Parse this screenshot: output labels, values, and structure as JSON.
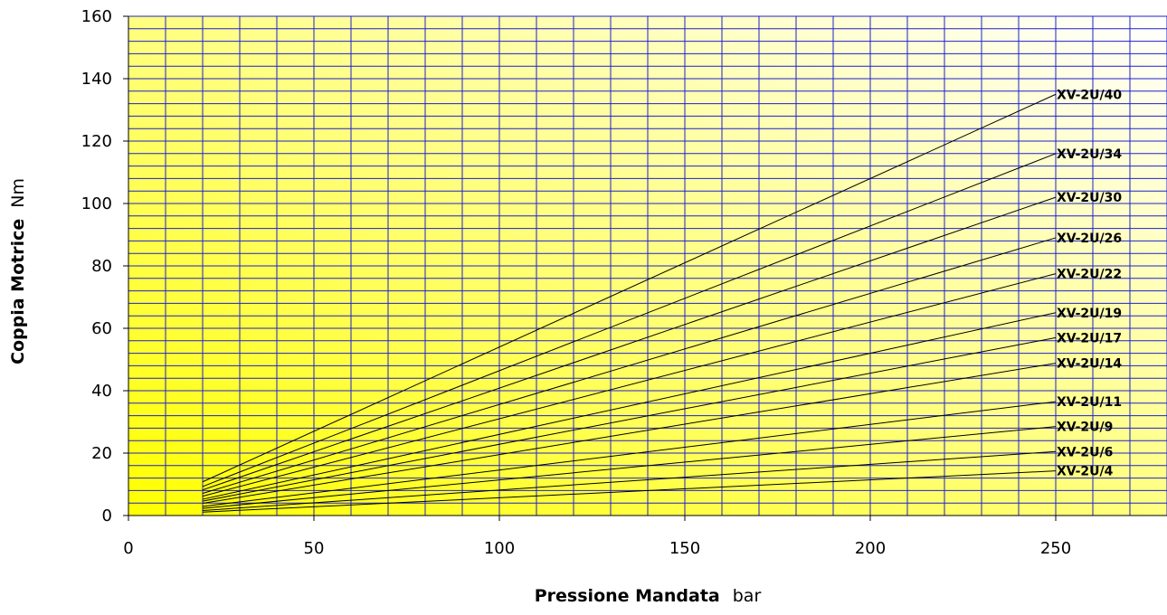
{
  "chart_data": {
    "type": "line",
    "xlabel": "Pressione Mandata",
    "xunit": "bar",
    "ylabel": "Coppia Motrice",
    "yunit": "Nm",
    "xlim": [
      0,
      280
    ],
    "ylim": [
      0,
      160
    ],
    "x_ticks": [
      0,
      50,
      100,
      150,
      200,
      250
    ],
    "y_ticks": [
      0,
      20,
      40,
      60,
      80,
      100,
      120,
      140,
      160
    ],
    "grid": true,
    "colors": {
      "gridline": "#1f1fd0",
      "series_line": "#000000",
      "fill_gradient_from": "#ffff00",
      "fill_gradient_to": "#ffffff"
    },
    "series": [
      {
        "name": "XV-2U/4",
        "x": [
          20,
          250
        ],
        "y": [
          1.1,
          14.3
        ]
      },
      {
        "name": "XV-2U/6",
        "x": [
          20,
          250
        ],
        "y": [
          1.6,
          20.5
        ]
      },
      {
        "name": "XV-2U/9",
        "x": [
          20,
          250
        ],
        "y": [
          2.3,
          28.5
        ]
      },
      {
        "name": "XV-2U/11",
        "x": [
          20,
          250
        ],
        "y": [
          2.9,
          36.5
        ]
      },
      {
        "name": "XV-2U/14",
        "x": [
          20,
          250
        ],
        "y": [
          3.9,
          48.8
        ]
      },
      {
        "name": "XV-2U/17",
        "x": [
          20,
          250
        ],
        "y": [
          4.6,
          57.0
        ]
      },
      {
        "name": "XV-2U/19",
        "x": [
          20,
          250
        ],
        "y": [
          5.2,
          65.0
        ]
      },
      {
        "name": "XV-2U/22",
        "x": [
          20,
          250
        ],
        "y": [
          6.2,
          77.5
        ]
      },
      {
        "name": "XV-2U/26",
        "x": [
          20,
          250
        ],
        "y": [
          7.1,
          89.0
        ]
      },
      {
        "name": "XV-2U/30",
        "x": [
          20,
          250
        ],
        "y": [
          8.2,
          102.0
        ]
      },
      {
        "name": "XV-2U/34",
        "x": [
          20,
          250
        ],
        "y": [
          9.3,
          116.0
        ]
      },
      {
        "name": "XV-2U/40",
        "x": [
          20,
          250
        ],
        "y": [
          10.8,
          135.0
        ]
      }
    ]
  }
}
